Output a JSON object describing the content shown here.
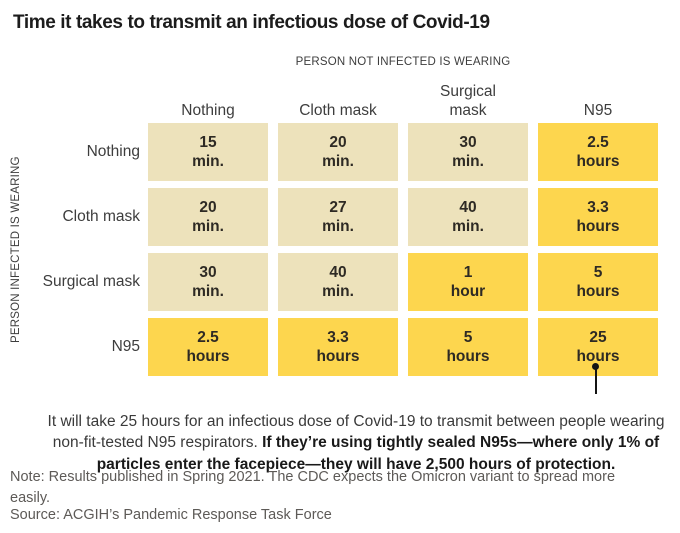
{
  "title": "Time it takes to transmit an infectious dose of Covid-19",
  "matrix": {
    "col_axis_label": "PERSON NOT INFECTED IS WEARING",
    "row_axis_label": "PERSON INFECTED IS WEARING",
    "col_headers": [
      "Nothing",
      "Cloth mask",
      "Surgical mask",
      "N95"
    ],
    "rows": [
      {
        "label": "Nothing",
        "cells": [
          {
            "value": "15",
            "unit": "min.",
            "highlight": false
          },
          {
            "value": "20",
            "unit": "min.",
            "highlight": false
          },
          {
            "value": "30",
            "unit": "min.",
            "highlight": false
          },
          {
            "value": "2.5",
            "unit": "hours",
            "highlight": true
          }
        ]
      },
      {
        "label": "Cloth mask",
        "cells": [
          {
            "value": "20",
            "unit": "min.",
            "highlight": false
          },
          {
            "value": "27",
            "unit": "min.",
            "highlight": false
          },
          {
            "value": "40",
            "unit": "min.",
            "highlight": false
          },
          {
            "value": "3.3",
            "unit": "hours",
            "highlight": true
          }
        ]
      },
      {
        "label": "Surgical mask",
        "cells": [
          {
            "value": "30",
            "unit": "min.",
            "highlight": false
          },
          {
            "value": "40",
            "unit": "min.",
            "highlight": false
          },
          {
            "value": "1",
            "unit": "hour",
            "highlight": true
          },
          {
            "value": "5",
            "unit": "hours",
            "highlight": true
          }
        ]
      },
      {
        "label": "N95",
        "cells": [
          {
            "value": "2.5",
            "unit": "hours",
            "highlight": true
          },
          {
            "value": "3.3",
            "unit": "hours",
            "highlight": true
          },
          {
            "value": "5",
            "unit": "hours",
            "highlight": true
          },
          {
            "value": "25",
            "unit": "hours",
            "highlight": true
          }
        ]
      }
    ]
  },
  "chart_data": {
    "type": "heatmap",
    "title": "Time it takes to transmit an infectious dose of Covid-19",
    "x_axis_label": "PERSON NOT INFECTED IS WEARING",
    "y_axis_label": "PERSON INFECTED IS WEARING",
    "categories_x": [
      "Nothing",
      "Cloth mask",
      "Surgical mask",
      "N95"
    ],
    "categories_y": [
      "Nothing",
      "Cloth mask",
      "Surgical mask",
      "N95"
    ],
    "values_display": [
      [
        "15 min.",
        "20 min.",
        "30 min.",
        "2.5 hours"
      ],
      [
        "20 min.",
        "27 min.",
        "40 min.",
        "3.3 hours"
      ],
      [
        "30 min.",
        "40 min.",
        "1 hour",
        "5 hours"
      ],
      [
        "2.5 hours",
        "3.3 hours",
        "5 hours",
        "25 hours"
      ]
    ],
    "values_minutes": [
      [
        15,
        20,
        30,
        150
      ],
      [
        20,
        27,
        40,
        198
      ],
      [
        30,
        40,
        60,
        300
      ],
      [
        150,
        198,
        300,
        1500
      ]
    ],
    "legend": {
      "minutes_color": "#EDE2BB",
      "hours_color": "#FDD64E"
    },
    "annotation_target": "25 hours"
  },
  "annotation": {
    "text_normal": "It will take 25 hours for an infectious dose of Covid-19 to transmit between people wearing non-fit-tested N95 respirators. ",
    "text_bold": "If they’re using tightly sealed N95s—where only 1% of particles enter the facepiece—they will have 2,500 hours of protection."
  },
  "note": "Note: Results published in Spring 2021. The CDC expects the Omicron variant to spread more easily.",
  "source": "Source: ACGIH’s Pandemic Response Task Force",
  "colors": {
    "cell_minutes": "#EDE2BB",
    "cell_hours": "#FDD64E",
    "title_text": "#1C1C1C",
    "cell_text": "#2E2A24",
    "label_text": "#3D3D3D",
    "muted_text": "#5D5A57",
    "callout": "#141414"
  }
}
